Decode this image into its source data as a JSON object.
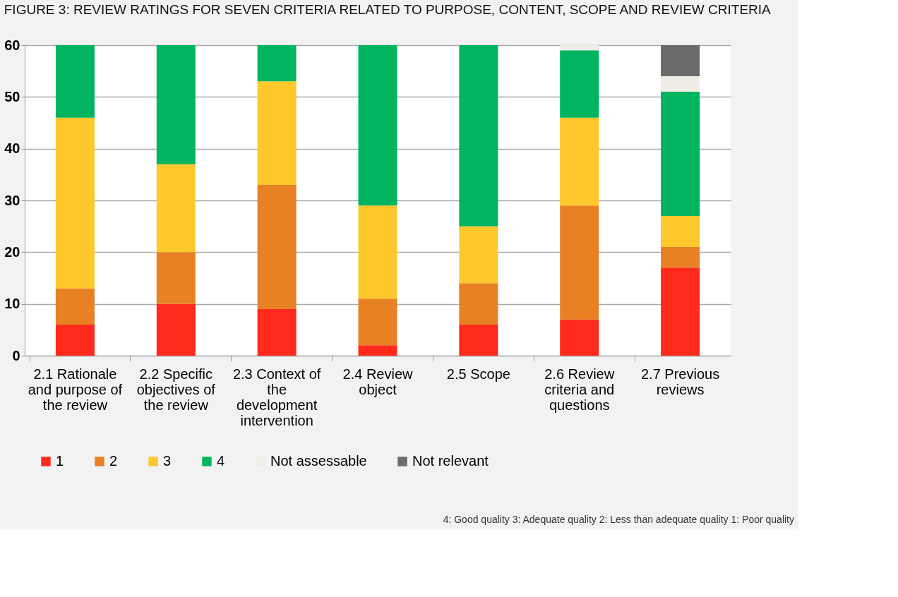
{
  "chart_data": {
    "type": "bar",
    "stacked": true,
    "title": "FIGURE 3: REVIEW RATINGS FOR SEVEN CRITERIA RELATED TO PURPOSE, CONTENT, SCOPE AND REVIEW CRITERIA",
    "categories": [
      "2.1 Rationale and purpose of the review",
      "2.2 Specific objectives of the review",
      "2.3 Context of the development intervention",
      "2.4 Review object",
      "2.5 Scope",
      "2.6 Review criteria and questions",
      "2.7 Previous reviews"
    ],
    "series": [
      {
        "name": "1",
        "color": "#ff2a1c",
        "values": [
          6,
          10,
          9,
          2,
          6,
          7,
          17
        ]
      },
      {
        "name": "2",
        "color": "#e88124",
        "values": [
          7,
          10,
          24,
          9,
          8,
          22,
          4
        ]
      },
      {
        "name": "3",
        "color": "#ffc82c",
        "values": [
          33,
          17,
          20,
          18,
          11,
          17,
          6
        ]
      },
      {
        "name": "4",
        "color": "#00b460",
        "values": [
          14,
          23,
          7,
          31,
          35,
          13,
          24
        ]
      },
      {
        "name": "Not assessable",
        "color": "#efede6",
        "values": [
          0,
          0,
          0,
          0,
          0,
          1,
          3
        ]
      },
      {
        "name": "Not relevant",
        "color": "#6b6b6b",
        "values": [
          0,
          0,
          0,
          0,
          0,
          0,
          6
        ]
      }
    ],
    "ylim": [
      0,
      60
    ],
    "yticks": [
      0,
      10,
      20,
      30,
      40,
      50,
      60
    ],
    "grid": "y",
    "legend": "bottom",
    "annotations": [
      "4: Good quality  3: Adequate quality  2: Less than adequate quality  1: Poor quality"
    ]
  }
}
